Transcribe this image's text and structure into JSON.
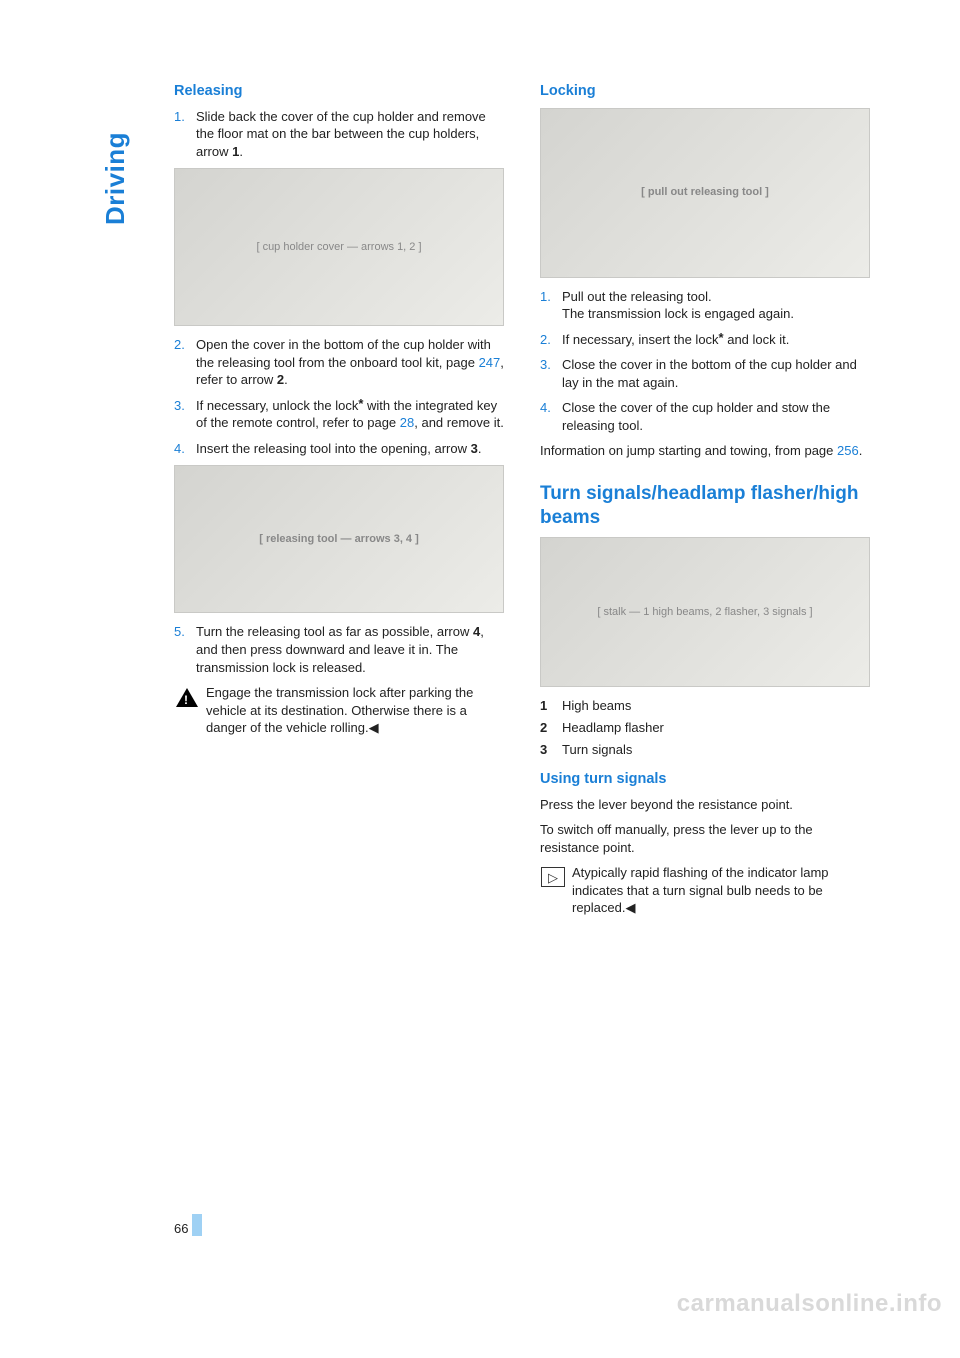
{
  "sidetab": "Driving",
  "page_number": "66",
  "watermark": "carmanualsonline.info",
  "colors": {
    "accent": "#1a7fd6",
    "text": "#222222",
    "placeholder_bg": "#e0e0dc",
    "highlight_bar": "#9fd1f4",
    "watermark": "#d9d9d9"
  },
  "left": {
    "releasing_h": "Releasing",
    "step1_num": "1.",
    "step1_a": "Slide back the cover of the cup holder and remove the floor mat on the bar between the cup holders, arrow ",
    "step1_b": "1",
    "step1_c": ".",
    "img1_alt": "[ cup holder cover — arrows 1, 2 ]",
    "step2_num": "2.",
    "step2_a": "Open the cover in the bottom of the cup holder with the releasing tool from the onboard tool kit, page ",
    "step2_link": "247",
    "step2_b": ", refer to arrow ",
    "step2_c": "2",
    "step2_d": ".",
    "step3_num": "3.",
    "step3_a": "If necessary, unlock the lock",
    "step3_star": "*",
    "step3_b": " with the integrated key of the remote control, refer to page ",
    "step3_link": "28",
    "step3_c": ", and remove it.",
    "step4_num": "4.",
    "step4_a": "Insert the releasing tool into the opening, arrow ",
    "step4_b": "3",
    "step4_c": ".",
    "img2_alt": "[ releasing tool — arrows 3, 4 ]",
    "step5_num": "5.",
    "step5_a": "Turn the releasing tool as far as possible, arrow ",
    "step5_b": "4",
    "step5_c": ", and then press downward and leave it in. The transmission lock is released.",
    "warn_a": "Engage the transmission lock after parking the vehicle at its destination. Otherwise there is a danger of the vehicle rolling.",
    "warn_end": "◀"
  },
  "right": {
    "locking_h": "Locking",
    "img1_alt": "[ pull out releasing tool ]",
    "step1_num": "1.",
    "step1_a": "Pull out the releasing tool.",
    "step1_b": "The transmission lock is engaged again.",
    "step2_num": "2.",
    "step2_a": "If necessary, insert the lock",
    "step2_star": "*",
    "step2_b": " and lock it.",
    "step3_num": "3.",
    "step3_a": "Close the cover in the bottom of the cup holder and lay in the mat again.",
    "step4_num": "4.",
    "step4_a": "Close the cover of the cup holder and stow the releasing tool.",
    "info_a": "Information on jump starting and towing, from page ",
    "info_link": "256",
    "info_b": ".",
    "signals_h": "Turn signals/headlamp flasher/high beams",
    "img2_alt": "[ stalk — 1 high beams, 2 flasher, 3 signals ]",
    "legend": {
      "n1": "1",
      "t1": "High beams",
      "n2": "2",
      "t2": "Headlamp flasher",
      "n3": "3",
      "t3": "Turn signals"
    },
    "using_h": "Using turn signals",
    "using_p1": "Press the lever beyond the resistance point.",
    "using_p2": "To switch off manually, press the lever up to the resistance point.",
    "note_a": "Atypically rapid flashing of the indicator lamp indicates that a turn signal bulb needs to be replaced.",
    "note_end": "◀"
  }
}
